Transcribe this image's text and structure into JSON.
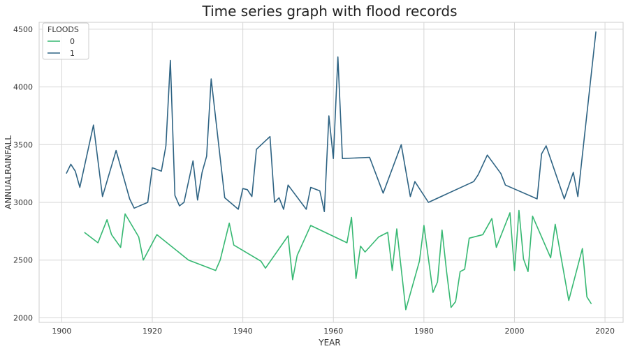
{
  "chart_data": {
    "type": "line",
    "title": "Time series graph with flood records",
    "xlabel": "YEAR",
    "ylabel": "ANNUALRAINFALL",
    "xlim": [
      1895,
      2024
    ],
    "ylim": [
      1960,
      4560
    ],
    "xticks": [
      1900,
      1920,
      1940,
      1960,
      1980,
      2000,
      2020
    ],
    "yticks": [
      2000,
      2500,
      3000,
      3500,
      4000,
      4500
    ],
    "grid": true,
    "legend": {
      "title": "FLOODS",
      "placement": "top-left"
    },
    "series": [
      {
        "name": "0",
        "color": "#36b872",
        "points": [
          [
            1905,
            2740
          ],
          [
            1908,
            2650
          ],
          [
            1910,
            2850
          ],
          [
            1911,
            2720
          ],
          [
            1913,
            2610
          ],
          [
            1914,
            2900
          ],
          [
            1917,
            2700
          ],
          [
            1918,
            2500
          ],
          [
            1921,
            2720
          ],
          [
            1928,
            2500
          ],
          [
            1934,
            2410
          ],
          [
            1935,
            2500
          ],
          [
            1937,
            2820
          ],
          [
            1938,
            2630
          ],
          [
            1944,
            2490
          ],
          [
            1945,
            2430
          ],
          [
            1950,
            2710
          ],
          [
            1951,
            2330
          ],
          [
            1952,
            2540
          ],
          [
            1955,
            2800
          ],
          [
            1963,
            2650
          ],
          [
            1964,
            2870
          ],
          [
            1965,
            2340
          ],
          [
            1966,
            2620
          ],
          [
            1967,
            2570
          ],
          [
            1970,
            2700
          ],
          [
            1972,
            2740
          ],
          [
            1973,
            2410
          ],
          [
            1974,
            2770
          ],
          [
            1976,
            2070
          ],
          [
            1979,
            2490
          ],
          [
            1980,
            2800
          ],
          [
            1982,
            2220
          ],
          [
            1983,
            2310
          ],
          [
            1984,
            2760
          ],
          [
            1985,
            2400
          ],
          [
            1986,
            2090
          ],
          [
            1987,
            2140
          ],
          [
            1988,
            2400
          ],
          [
            1989,
            2420
          ],
          [
            1990,
            2690
          ],
          [
            1993,
            2720
          ],
          [
            1995,
            2860
          ],
          [
            1996,
            2610
          ],
          [
            1999,
            2910
          ],
          [
            2000,
            2410
          ],
          [
            2001,
            2930
          ],
          [
            2002,
            2510
          ],
          [
            2003,
            2400
          ],
          [
            2004,
            2880
          ],
          [
            2008,
            2520
          ],
          [
            2009,
            2810
          ],
          [
            2012,
            2150
          ],
          [
            2015,
            2600
          ],
          [
            2016,
            2180
          ],
          [
            2017,
            2120
          ]
        ]
      },
      {
        "name": "1",
        "color": "#2e6383",
        "points": [
          [
            1901,
            3250
          ],
          [
            1902,
            3330
          ],
          [
            1903,
            3270
          ],
          [
            1904,
            3130
          ],
          [
            1907,
            3670
          ],
          [
            1909,
            3050
          ],
          [
            1912,
            3450
          ],
          [
            1915,
            3030
          ],
          [
            1916,
            2950
          ],
          [
            1919,
            3000
          ],
          [
            1920,
            3300
          ],
          [
            1922,
            3270
          ],
          [
            1923,
            3490
          ],
          [
            1924,
            4230
          ],
          [
            1925,
            3060
          ],
          [
            1926,
            2970
          ],
          [
            1927,
            3000
          ],
          [
            1929,
            3360
          ],
          [
            1930,
            3020
          ],
          [
            1931,
            3260
          ],
          [
            1932,
            3400
          ],
          [
            1933,
            4070
          ],
          [
            1936,
            3040
          ],
          [
            1939,
            2940
          ],
          [
            1940,
            3120
          ],
          [
            1941,
            3110
          ],
          [
            1942,
            3050
          ],
          [
            1943,
            3460
          ],
          [
            1946,
            3570
          ],
          [
            1947,
            3000
          ],
          [
            1948,
            3040
          ],
          [
            1949,
            2940
          ],
          [
            1950,
            3150
          ],
          [
            1954,
            2940
          ],
          [
            1955,
            3130
          ],
          [
            1957,
            3100
          ],
          [
            1958,
            2920
          ],
          [
            1959,
            3750
          ],
          [
            1960,
            3380
          ],
          [
            1961,
            4260
          ],
          [
            1962,
            3380
          ],
          [
            1968,
            3390
          ],
          [
            1971,
            3080
          ],
          [
            1975,
            3500
          ],
          [
            1977,
            3050
          ],
          [
            1978,
            3180
          ],
          [
            1981,
            3000
          ],
          [
            1991,
            3180
          ],
          [
            1992,
            3240
          ],
          [
            1994,
            3410
          ],
          [
            1997,
            3250
          ],
          [
            1998,
            3150
          ],
          [
            2005,
            3030
          ],
          [
            2006,
            3420
          ],
          [
            2007,
            3490
          ],
          [
            2011,
            3030
          ],
          [
            2013,
            3260
          ],
          [
            2014,
            3050
          ],
          [
            2018,
            4480
          ]
        ]
      }
    ]
  }
}
